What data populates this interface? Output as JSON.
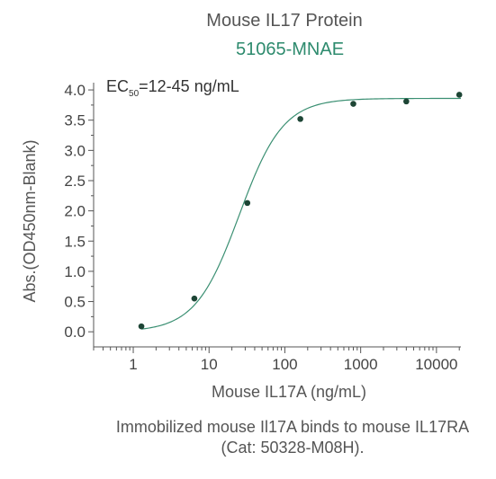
{
  "chart_data": {
    "type": "scatter",
    "title": "Mouse IL17 Protein",
    "subtitle": "51065-MNAE",
    "annotation": {
      "prefix": "EC",
      "sub": "50",
      "suffix": "=12-45 ng/mL"
    },
    "xlabel": "Mouse IL17A (ng/mL)",
    "ylabel": "Abs.(OD450nm-Blank)",
    "xscale": "log",
    "xlim": [
      0.3,
      21000
    ],
    "ylim": [
      -0.25,
      4.12
    ],
    "xticks": [
      1,
      10,
      100,
      1000,
      10000
    ],
    "xtick_labels": [
      "1",
      "10",
      "100",
      "1000",
      "10000"
    ],
    "yticks": [
      0.0,
      0.5,
      1.0,
      1.5,
      2.0,
      2.5,
      3.0,
      3.5,
      4.0
    ],
    "ytick_labels": [
      "0.0",
      "0.5",
      "1.0",
      "1.5",
      "2.0",
      "2.5",
      "3.0",
      "3.5",
      "4.0"
    ],
    "series": [
      {
        "x": [
          1.28,
          6.4,
          32,
          160,
          800,
          4000,
          20000
        ],
        "y": [
          0.09,
          0.55,
          2.13,
          3.52,
          3.77,
          3.81,
          3.92
        ]
      }
    ],
    "fit": {
      "bottom": 0.0,
      "top": 3.86,
      "ec50": 25,
      "hill": 1.5
    },
    "colors": {
      "point": "#1d4535",
      "curve": "#3a8f72",
      "axis": "#555555"
    },
    "grid": false,
    "caption": [
      "Immobilized mouse Il17A binds to mouse IL17RA",
      "(Cat: 50328-M08H)."
    ]
  }
}
